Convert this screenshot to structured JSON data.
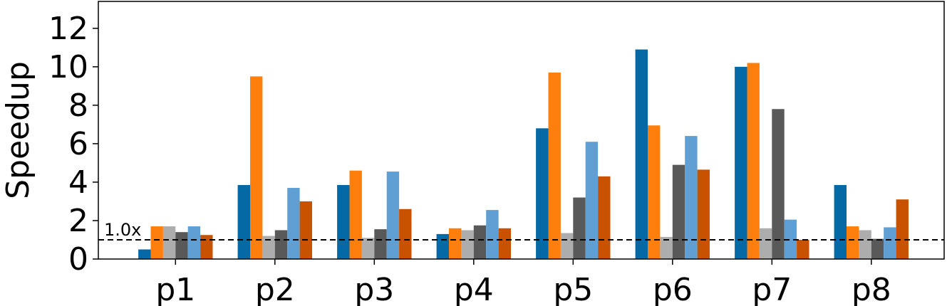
{
  "chart_data": {
    "type": "bar",
    "categories": [
      "p1",
      "p2",
      "p3",
      "p4",
      "p5",
      "p6",
      "p7",
      "p8"
    ],
    "ylabel": "Speedup",
    "xlabel": "",
    "title": "",
    "ylim": [
      0,
      13.4
    ],
    "yticks": [
      0,
      2,
      4,
      6,
      8,
      10,
      12
    ],
    "ytick_labels": [
      "0",
      "2",
      "4",
      "6",
      "8",
      "10",
      "12"
    ],
    "grid": false,
    "legend": "none",
    "series": [
      {
        "color": "#0569a6",
        "values": [
          0.5,
          3.85,
          3.85,
          1.3,
          6.8,
          10.9,
          10.0,
          3.85
        ]
      },
      {
        "color": "#ff7f0e",
        "values": [
          1.7,
          9.5,
          4.6,
          1.6,
          9.7,
          6.95,
          10.2,
          1.7
        ]
      },
      {
        "color": "#adadad",
        "values": [
          1.7,
          1.2,
          1.1,
          1.5,
          1.35,
          1.15,
          1.6,
          1.5
        ]
      },
      {
        "color": "#595959",
        "values": [
          1.4,
          1.5,
          1.55,
          1.75,
          3.2,
          4.9,
          7.8,
          1.05
        ]
      },
      {
        "color": "#5f9fd4",
        "values": [
          1.7,
          3.7,
          4.55,
          2.55,
          6.1,
          6.4,
          2.05,
          1.65
        ]
      },
      {
        "color": "#c85200",
        "values": [
          1.25,
          3.0,
          2.6,
          1.6,
          4.3,
          4.65,
          1.0,
          3.1
        ]
      }
    ],
    "reference_line": {
      "value": 1.0,
      "label": "1.0x",
      "style": "dashed",
      "color": "#000000"
    }
  }
}
